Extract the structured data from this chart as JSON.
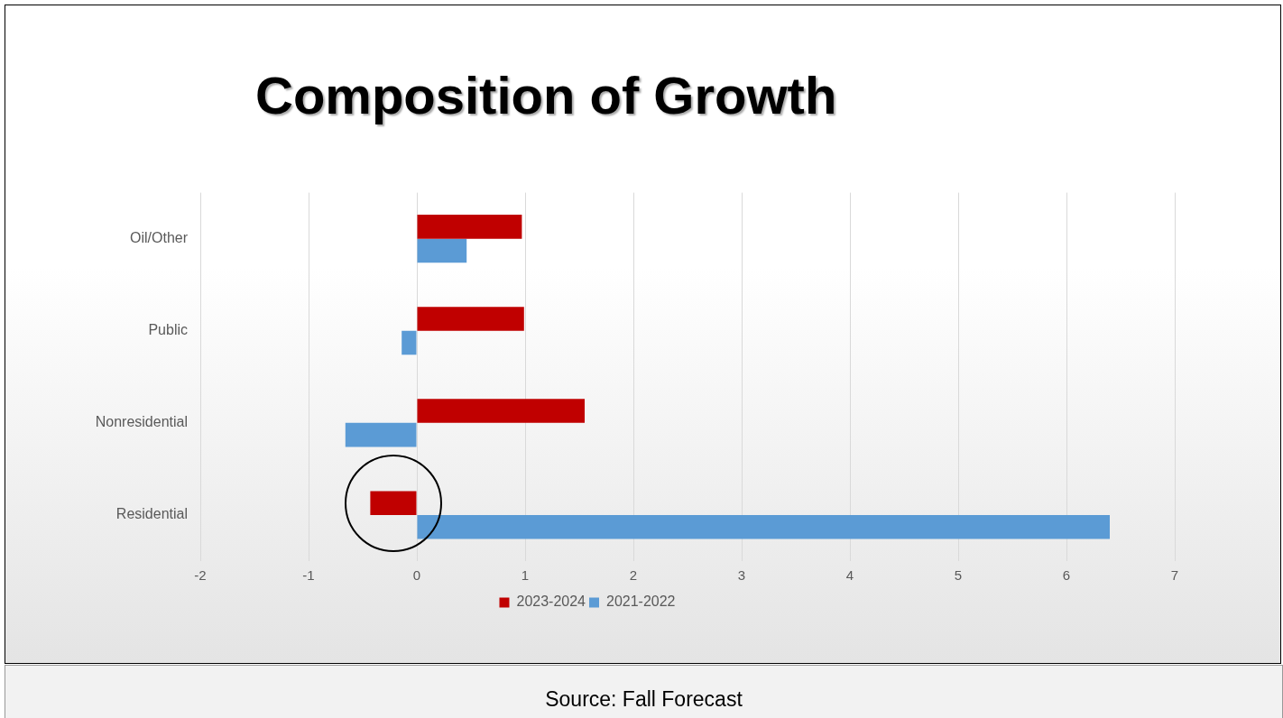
{
  "chart_data": {
    "type": "bar",
    "orientation": "horizontal",
    "title": "Composition of Growth",
    "categories": [
      "Oil/Other",
      "Public",
      "Nonresidential",
      "Residential"
    ],
    "series": [
      {
        "name": "2023-2024",
        "color": "#c00000",
        "values": [
          0.97,
          0.99,
          1.55,
          -0.43
        ]
      },
      {
        "name": "2021-2022",
        "color": "#5b9bd5",
        "values": [
          0.46,
          -0.14,
          -0.66,
          6.4
        ]
      }
    ],
    "xlim": [
      -2,
      7
    ],
    "xticks": [
      -2,
      -1,
      0,
      1,
      2,
      3,
      4,
      5,
      6,
      7
    ],
    "grid": "x",
    "legend": "bottom",
    "annotations": [
      "Source: Fall Forecast"
    ]
  }
}
